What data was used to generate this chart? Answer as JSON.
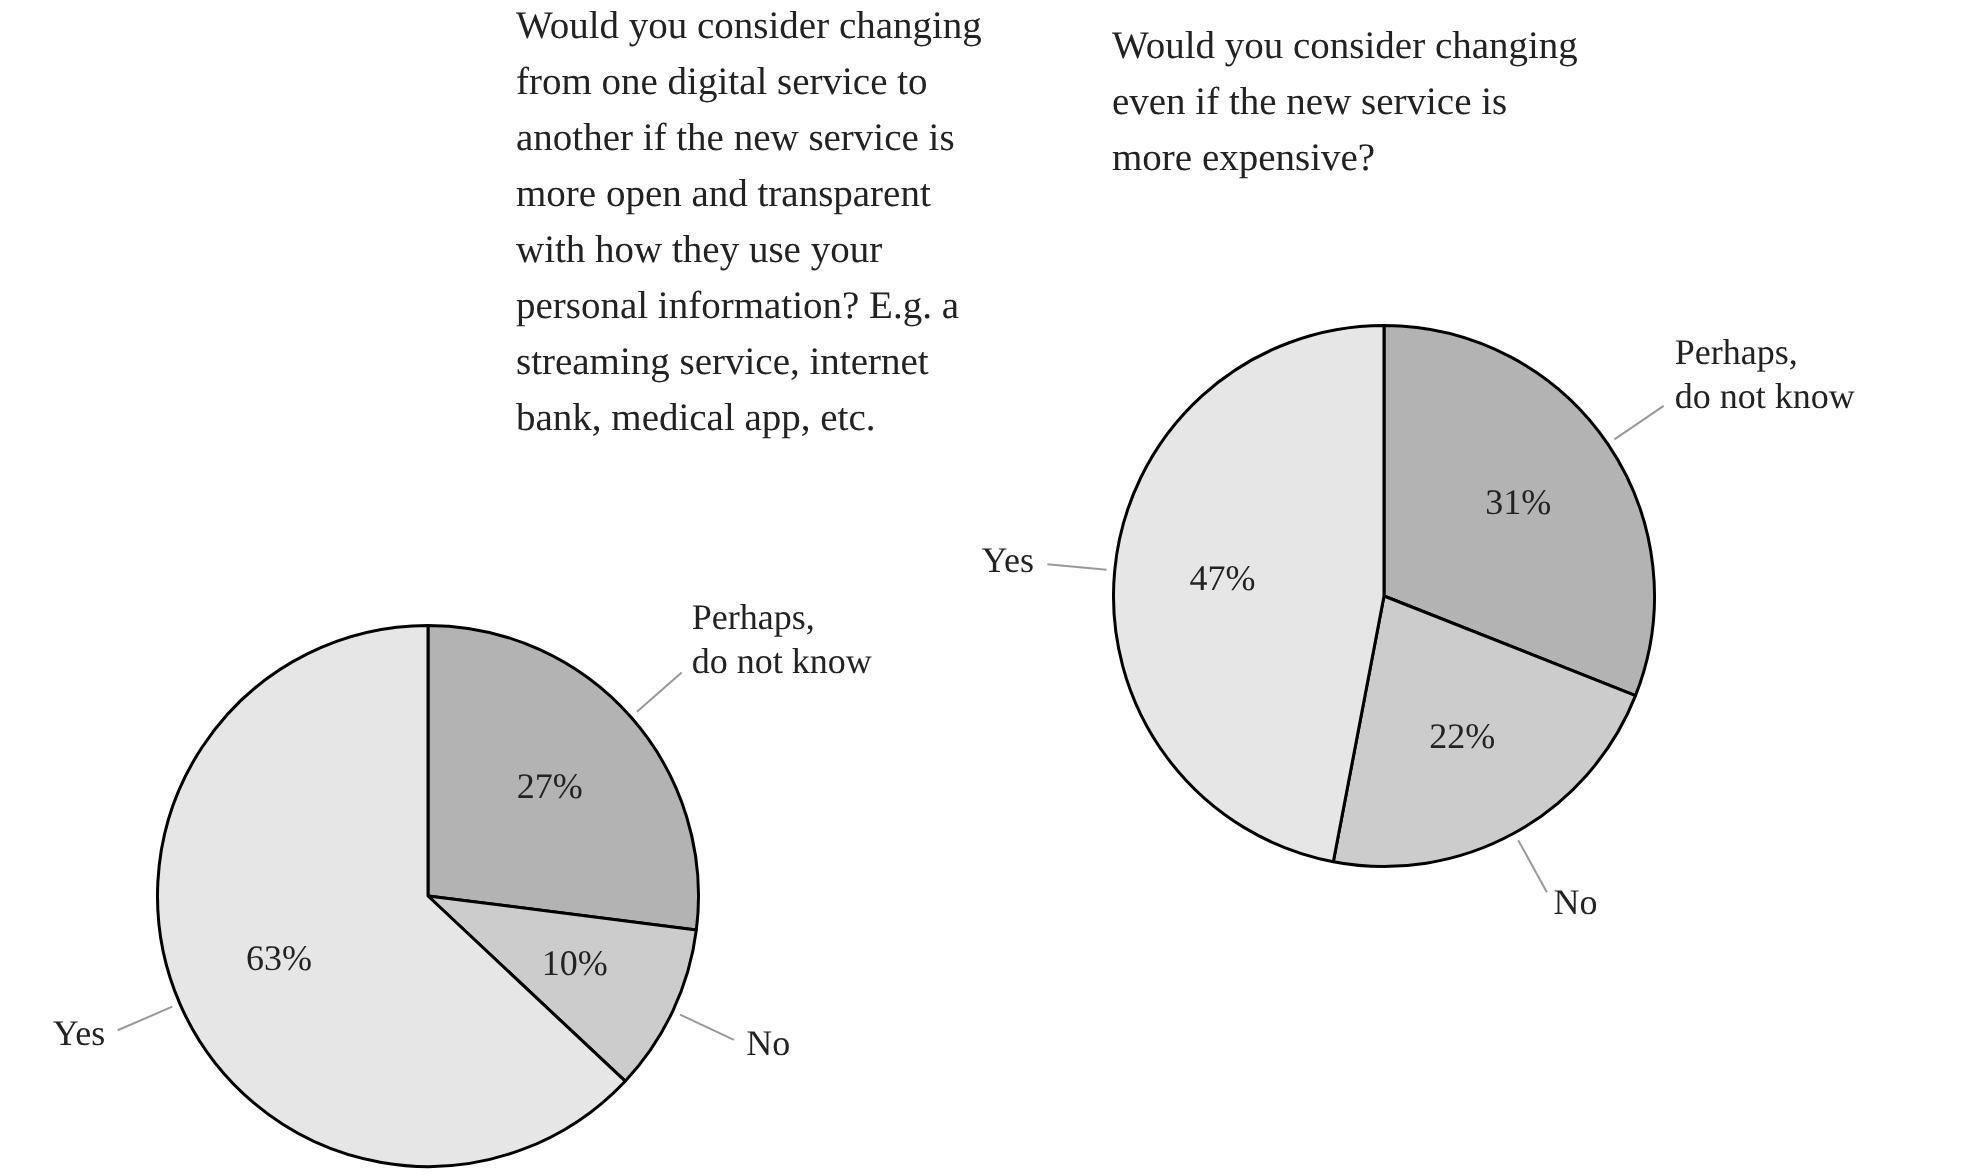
{
  "chart_data": [
    {
      "type": "pie",
      "title": "Would you consider changing from one digital service to another if the new service is more open and transparent with how they use your personal information? E.g. a streaming service, internet bank, medical app, etc.",
      "categories": [
        "Perhaps, do not know",
        "No",
        "Yes"
      ],
      "values": [
        27,
        10,
        63
      ],
      "colors": [
        "#b3b3b3",
        "#cccccc",
        "#e6e6e6"
      ],
      "value_labels": [
        "27%",
        "10%",
        "63%"
      ]
    },
    {
      "type": "pie",
      "title": "Would you consider changing even if the new service is more expensive?",
      "categories": [
        "Perhaps, do not know",
        "No",
        "Yes"
      ],
      "values": [
        31,
        22,
        47
      ],
      "colors": [
        "#b3b3b3",
        "#cccccc",
        "#e6e6e6"
      ],
      "value_labels": [
        "31%",
        "22%",
        "47%"
      ]
    }
  ]
}
